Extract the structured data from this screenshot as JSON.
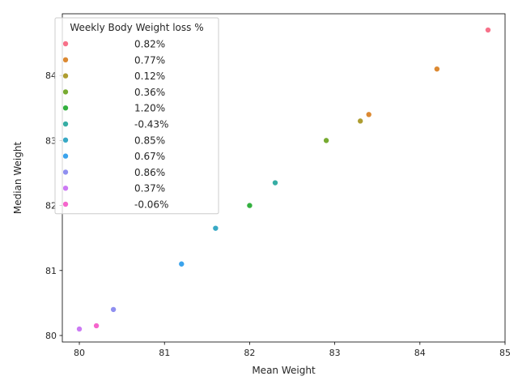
{
  "chart_data": {
    "type": "scatter",
    "xlabel": "Mean Weight",
    "ylabel": "Median Weight",
    "xlim": [
      79.8,
      85.0
    ],
    "ylim": [
      79.9,
      84.95
    ],
    "xticks": [
      80,
      81,
      82,
      83,
      84,
      85
    ],
    "yticks": [
      80,
      81,
      82,
      83,
      84
    ],
    "legend": {
      "title": "Weekly Body Weight loss %",
      "placement": "top-left"
    },
    "series": [
      {
        "name": "0.82%",
        "color": "#f77189",
        "points": [
          {
            "x": 84.8,
            "y": 84.7
          }
        ]
      },
      {
        "name": "0.77%",
        "color": "#dc8932",
        "points": [
          {
            "x": 84.2,
            "y": 84.1
          },
          {
            "x": 83.4,
            "y": 83.4
          }
        ]
      },
      {
        "name": "0.12%",
        "color": "#ae9d31",
        "points": [
          {
            "x": 83.3,
            "y": 83.3
          }
        ]
      },
      {
        "name": "0.36%",
        "color": "#77ab31",
        "points": [
          {
            "x": 82.9,
            "y": 83.0
          }
        ]
      },
      {
        "name": "1.20%",
        "color": "#33b03f",
        "points": [
          {
            "x": 82.0,
            "y": 82.0
          }
        ]
      },
      {
        "name": "-0.43%",
        "color": "#36ada4",
        "points": [
          {
            "x": 82.3,
            "y": 82.35
          }
        ]
      },
      {
        "name": "0.85%",
        "color": "#38a9c5",
        "points": [
          {
            "x": 81.6,
            "y": 81.65
          }
        ]
      },
      {
        "name": "0.67%",
        "color": "#3ba3ec",
        "points": [
          {
            "x": 81.2,
            "y": 81.1
          }
        ]
      },
      {
        "name": "0.86%",
        "color": "#8f8ff0",
        "points": [
          {
            "x": 80.4,
            "y": 80.4
          }
        ]
      },
      {
        "name": "0.37%",
        "color": "#cc7af4",
        "points": [
          {
            "x": 80.0,
            "y": 80.1
          }
        ]
      },
      {
        "name": "-0.06%",
        "color": "#f565cc",
        "points": [
          {
            "x": 80.2,
            "y": 80.15
          }
        ]
      }
    ]
  }
}
